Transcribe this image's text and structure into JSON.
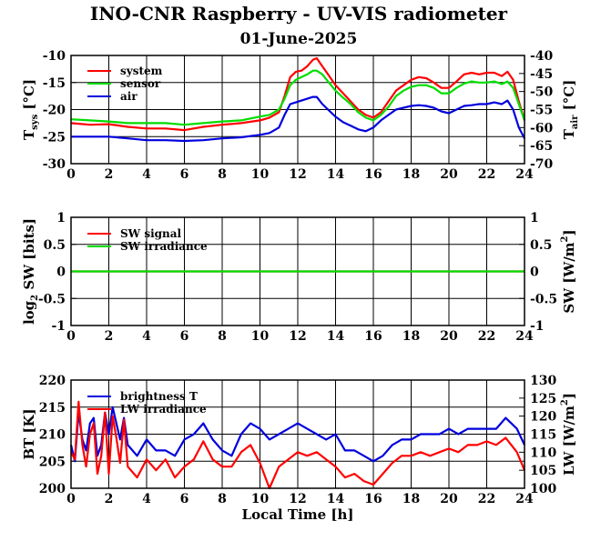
{
  "title": "INO-CNR Raspberry - UV-VIS radiometer",
  "date": "01-June-2025",
  "colors": {
    "red": "#ff0000",
    "green": "#00dd00",
    "blue": "#0000dd",
    "axis": "#000000"
  },
  "chart_data": [
    {
      "type": "line",
      "x_ticks": [
        "0",
        "2",
        "4",
        "6",
        "8",
        "10",
        "12",
        "14",
        "16",
        "18",
        "20",
        "22",
        "24"
      ],
      "xlim": [
        0,
        24
      ],
      "ylim": [
        -30,
        -10
      ],
      "ylim_right": [
        -70,
        -40
      ],
      "left_ticks": [
        "-10",
        "-15",
        "-20",
        "-25",
        "-30"
      ],
      "right_ticks": [
        "-40",
        "-45",
        "-50",
        "-55",
        "-60",
        "-65",
        "-70"
      ],
      "ylabel": {
        "main": "T",
        "sub": "sys",
        "unit": " [°C]"
      },
      "ylabel_right": {
        "main": "T",
        "sub": "air",
        "unit": " [°C]"
      },
      "legend": [
        "system",
        "sensor",
        "air"
      ],
      "series": [
        {
          "name": "system",
          "axis": "left",
          "color": "#ff0000",
          "x": [
            0,
            1,
            2,
            3,
            4,
            5,
            6,
            7,
            8,
            9,
            10,
            10.5,
            11,
            11.3,
            11.6,
            11.9,
            12.2,
            12.5,
            12.8,
            13,
            13.3,
            13.6,
            14,
            14.4,
            14.8,
            15.2,
            15.6,
            16,
            16.4,
            16.8,
            17.2,
            17.6,
            18,
            18.4,
            18.8,
            19.2,
            19.6,
            20,
            20.4,
            20.8,
            21.2,
            21.6,
            22,
            22.4,
            22.8,
            23.1,
            23.4,
            23.7,
            24
          ],
          "y": [
            -22.5,
            -22.8,
            -22.7,
            -23.2,
            -23.5,
            -23.5,
            -23.8,
            -23.2,
            -22.8,
            -22.5,
            -22,
            -21.5,
            -20.5,
            -17.5,
            -14,
            -13,
            -12.8,
            -12,
            -10.8,
            -10.5,
            -12,
            -13.5,
            -15.5,
            -17,
            -18.5,
            -20,
            -21,
            -21.5,
            -20.5,
            -18.5,
            -16.5,
            -15.5,
            -14.5,
            -14,
            -14.2,
            -15,
            -16,
            -16,
            -14.8,
            -13.5,
            -13.2,
            -13.5,
            -13.2,
            -13.2,
            -13.8,
            -13,
            -14.5,
            -18.5,
            -22
          ]
        },
        {
          "name": "sensor",
          "axis": "left",
          "color": "#00dd00",
          "x": [
            0,
            1,
            2,
            3,
            4,
            5,
            6,
            7,
            8,
            9,
            10,
            10.5,
            11,
            11.3,
            11.6,
            11.9,
            12.2,
            12.5,
            12.8,
            13,
            13.3,
            13.6,
            14,
            14.4,
            14.8,
            15.2,
            15.6,
            16,
            16.4,
            16.8,
            17.2,
            17.6,
            18,
            18.4,
            18.8,
            19.2,
            19.6,
            20,
            20.4,
            20.8,
            21.2,
            21.6,
            22,
            22.4,
            22.8,
            23.1,
            23.4,
            23.7,
            24
          ],
          "y": [
            -21.8,
            -22,
            -22.2,
            -22.5,
            -22.5,
            -22.5,
            -22.8,
            -22.5,
            -22.2,
            -22,
            -21.3,
            -21,
            -20,
            -18,
            -15.5,
            -14.5,
            -14,
            -13.5,
            -12.8,
            -12.8,
            -13.5,
            -14.8,
            -16.5,
            -17.8,
            -19,
            -20.5,
            -21.5,
            -22,
            -21,
            -19.5,
            -17.5,
            -16.5,
            -15.8,
            -15.5,
            -15.5,
            -16,
            -17,
            -17,
            -16,
            -15.2,
            -14.8,
            -15,
            -15,
            -14.8,
            -15.3,
            -14.8,
            -16,
            -19,
            -22
          ]
        },
        {
          "name": "air",
          "axis": "right",
          "color": "#0000dd",
          "x": [
            0,
            1,
            2,
            3,
            4,
            5,
            6,
            7,
            8,
            9,
            10,
            10.5,
            11,
            11.3,
            11.6,
            11.9,
            12.2,
            12.5,
            12.8,
            13,
            13.3,
            13.6,
            14,
            14.4,
            14.8,
            15.2,
            15.6,
            16,
            16.4,
            16.8,
            17.2,
            17.6,
            18,
            18.4,
            18.8,
            19.2,
            19.6,
            20,
            20.4,
            20.8,
            21.2,
            21.6,
            22,
            22.4,
            22.8,
            23.1,
            23.4,
            23.7,
            24
          ],
          "y": [
            -62.5,
            -62.5,
            -62.5,
            -63,
            -63.5,
            -63.5,
            -63.7,
            -63.5,
            -63,
            -62.7,
            -62,
            -61.5,
            -60,
            -56.5,
            -53.5,
            -53,
            -52.5,
            -52,
            -51.5,
            -51.5,
            -53.5,
            -55,
            -57,
            -58.5,
            -59.5,
            -60.5,
            -61,
            -60,
            -58,
            -56.5,
            -55,
            -54.5,
            -54,
            -53.8,
            -54,
            -54.5,
            -55.5,
            -56,
            -55,
            -54,
            -53.8,
            -53.5,
            -53.5,
            -53,
            -53.5,
            -52.5,
            -55,
            -60,
            -63
          ]
        }
      ]
    },
    {
      "type": "line",
      "x_ticks": [
        "0",
        "2",
        "4",
        "6",
        "8",
        "10",
        "12",
        "14",
        "16",
        "18",
        "20",
        "22",
        "24"
      ],
      "xlim": [
        0,
        24
      ],
      "ylim": [
        -1,
        1
      ],
      "ylim_right": [
        -1,
        1
      ],
      "left_ticks": [
        "1",
        "0.5",
        "0",
        "-0.5",
        "-1"
      ],
      "right_ticks": [
        "1",
        "0.5",
        "0",
        "-0.5",
        "-1"
      ],
      "ylabel": {
        "main": "log",
        "sub": "2",
        "unit": " SW [bits]"
      },
      "ylabel_right": {
        "main": "SW [W/m",
        "sup": "2",
        "unit": "]"
      },
      "legend": [
        "SW signal",
        "SW irradiance"
      ],
      "series": [
        {
          "name": "SW signal",
          "axis": "left",
          "color": "#ff0000",
          "x": [
            0,
            24
          ],
          "y": [
            0,
            0
          ]
        },
        {
          "name": "SW irradiance",
          "axis": "left",
          "color": "#00dd00",
          "x": [
            0,
            24
          ],
          "y": [
            0,
            0
          ]
        }
      ]
    },
    {
      "type": "line",
      "x_ticks": [
        "0",
        "2",
        "4",
        "6",
        "8",
        "10",
        "12",
        "14",
        "16",
        "18",
        "20",
        "22",
        "24"
      ],
      "xlim": [
        0,
        24
      ],
      "ylim": [
        200,
        220
      ],
      "ylim_right": [
        100,
        130
      ],
      "left_ticks": [
        "220",
        "215",
        "210",
        "205",
        "200"
      ],
      "right_ticks": [
        "130",
        "125",
        "120",
        "115",
        "110",
        "105",
        "100"
      ],
      "ylabel": {
        "main": "BT [K]"
      },
      "ylabel_right": {
        "main": "LW [W/m",
        "sup": "2",
        "unit": "]"
      },
      "xlabel": "Local Time [h]",
      "legend": [
        "brightness T",
        "LW irradiance"
      ],
      "series": [
        {
          "name": "brightness T",
          "axis": "left",
          "color": "#0000dd",
          "x": [
            0,
            0.2,
            0.4,
            0.6,
            0.8,
            1,
            1.2,
            1.4,
            1.6,
            1.8,
            2,
            2.2,
            2.4,
            2.6,
            2.8,
            3,
            3.5,
            4,
            4.5,
            5,
            5.5,
            6,
            6.5,
            7,
            7.5,
            8,
            8.5,
            9,
            9.5,
            10,
            10.5,
            11,
            11.5,
            12,
            12.5,
            13,
            13.5,
            14,
            14.5,
            15,
            15.5,
            16,
            16.5,
            17,
            17.5,
            18,
            18.5,
            19,
            19.5,
            20,
            20.5,
            21,
            21.5,
            22,
            22.5,
            23,
            23.3,
            23.6,
            24
          ],
          "y": [
            208,
            205,
            214,
            209,
            207,
            212,
            213,
            206,
            208,
            214,
            210,
            215,
            212,
            209,
            213,
            208,
            206,
            209,
            207,
            207,
            206,
            209,
            210,
            212,
            209,
            207,
            206,
            210,
            212,
            211,
            209,
            210,
            211,
            212,
            211,
            210,
            209,
            210,
            207,
            207,
            206,
            205,
            206,
            208,
            209,
            209,
            210,
            210,
            210,
            211,
            210,
            211,
            211,
            211,
            211,
            213,
            212,
            211,
            208
          ]
        },
        {
          "name": "LW irradiance",
          "axis": "right",
          "color": "#ff0000",
          "x": [
            0,
            0.2,
            0.4,
            0.6,
            0.8,
            1,
            1.2,
            1.4,
            1.6,
            1.8,
            2,
            2.2,
            2.4,
            2.6,
            2.8,
            3,
            3.5,
            4,
            4.5,
            5,
            5.5,
            6,
            6.5,
            7,
            7.5,
            8,
            8.5,
            9,
            9.5,
            10,
            10.5,
            11,
            11.5,
            12,
            12.5,
            13,
            13.5,
            14,
            14.5,
            15,
            15.5,
            16,
            16.5,
            17,
            17.5,
            18,
            18.5,
            19,
            19.5,
            20,
            20.5,
            21,
            21.5,
            22,
            22.5,
            23,
            23.3,
            23.6,
            24
          ],
          "y": [
            110,
            108,
            124,
            112,
            106,
            115,
            118,
            104,
            109,
            121,
            104,
            120,
            114,
            107,
            119,
            106,
            103,
            108,
            105,
            108,
            103,
            106,
            108,
            113,
            108,
            106,
            106,
            110,
            112,
            107,
            100,
            106,
            108,
            110,
            109,
            110,
            108,
            106,
            103,
            104,
            102,
            101,
            104,
            107,
            109,
            109,
            110,
            109,
            110,
            111,
            110,
            112,
            112,
            113,
            112,
            114,
            112,
            110,
            105
          ]
        }
      ]
    }
  ]
}
